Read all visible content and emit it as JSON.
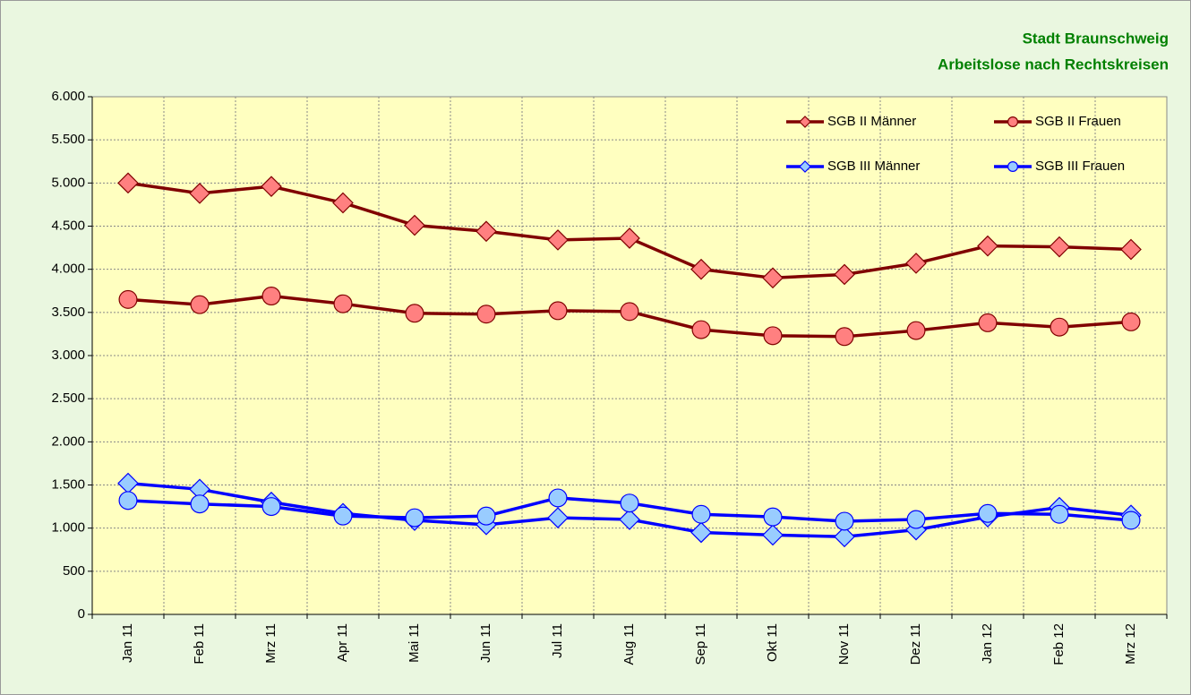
{
  "chart_data": {
    "type": "line",
    "title": [
      "Stadt Braunschweig",
      "Arbeitslose nach Rechtskreisen"
    ],
    "categories": [
      "Jan 11",
      "Feb 11",
      "Mrz 11",
      "Apr 11",
      "Mai 11",
      "Jun 11",
      "Jul 11",
      "Aug 11",
      "Sep 11",
      "Okt 11",
      "Nov 11",
      "Dez 11",
      "Jan 12",
      "Feb 12",
      "Mrz 12"
    ],
    "series": [
      {
        "name": "SGB II Männer",
        "color": "#800000",
        "marker_color": "#ff8080",
        "marker": "diamond",
        "values": [
          5000,
          4880,
          4960,
          4770,
          4510,
          4440,
          4340,
          4360,
          4000,
          3900,
          3940,
          4070,
          4270,
          4260,
          4230
        ]
      },
      {
        "name": "SGB II Frauen",
        "color": "#800000",
        "marker_color": "#ff8080",
        "marker": "circle",
        "values": [
          3650,
          3590,
          3690,
          3600,
          3490,
          3480,
          3520,
          3510,
          3300,
          3230,
          3220,
          3290,
          3380,
          3330,
          3390
        ]
      },
      {
        "name": "SGB III Männer",
        "color": "#0000ff",
        "marker_color": "#99ccff",
        "marker": "diamond",
        "values": [
          1520,
          1450,
          1300,
          1170,
          1090,
          1040,
          1120,
          1100,
          950,
          920,
          900,
          980,
          1130,
          1240,
          1150
        ]
      },
      {
        "name": "SGB III Frauen",
        "color": "#0000ff",
        "marker_color": "#99ccff",
        "marker": "circle",
        "values": [
          1320,
          1280,
          1250,
          1140,
          1120,
          1140,
          1350,
          1290,
          1160,
          1130,
          1080,
          1100,
          1170,
          1160,
          1090
        ]
      }
    ],
    "ylim": [
      0,
      6000
    ],
    "yticks": [
      0,
      500,
      {
        "value": 1000,
        "label": "1.000"
      },
      {
        "value": 1500,
        "label": "1.500"
      },
      {
        "value": 2000,
        "label": "2.000"
      },
      {
        "value": 2500,
        "label": "2.500"
      },
      {
        "value": 3000,
        "label": "3.000"
      },
      {
        "value": 3500,
        "label": "3.500"
      },
      {
        "value": 4000,
        "label": "4.000"
      },
      {
        "value": 4500,
        "label": "4.500"
      },
      {
        "value": 5000,
        "label": "5.000"
      },
      {
        "value": 5500,
        "label": "5.500"
      },
      {
        "value": 6000,
        "label": "6.000"
      }
    ],
    "grid": true,
    "legend": "upper right"
  }
}
